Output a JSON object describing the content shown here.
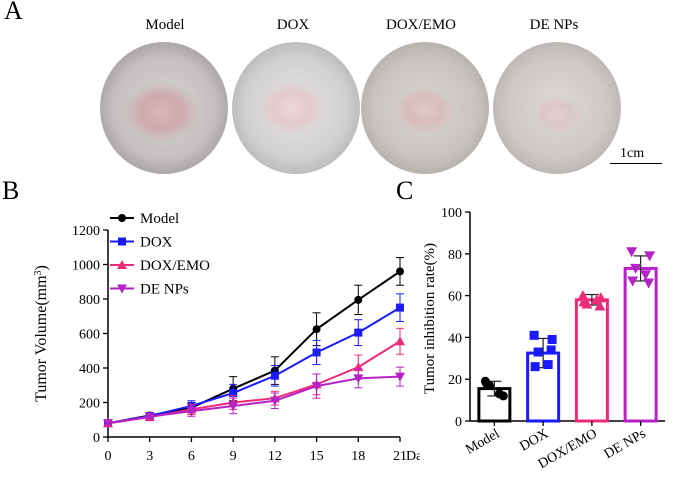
{
  "panels": {
    "a": "A",
    "b": "B",
    "c": "C"
  },
  "photos": {
    "labels": [
      "Model",
      "DOX",
      "DOX/EMO",
      "DE NPs"
    ],
    "scale_label": "1cm"
  },
  "colors": {
    "Model": "#000000",
    "DOX": "#1a1aff",
    "DOX/EMO": "#ee2a7b",
    "DE NPs": "#b522c6"
  },
  "chart_data": [
    {
      "type": "line",
      "title": "",
      "xlabel": "Days",
      "ylabel": "Tumor Volume(mm",
      "ylabel_sup": "3",
      "ylabel_close": ")",
      "x": [
        0,
        3,
        6,
        9,
        12,
        15,
        18,
        21
      ],
      "xlim": [
        0,
        21
      ],
      "ylim": [
        0,
        1200
      ],
      "yticks": [
        0,
        200,
        400,
        600,
        800,
        1000,
        1200
      ],
      "legend": "top-left",
      "series": [
        {
          "name": "Model",
          "marker": "circle",
          "values": [
            80,
            125,
            170,
            280,
            385,
            625,
            795,
            960
          ],
          "errors": [
            10,
            15,
            30,
            70,
            80,
            95,
            85,
            80
          ]
        },
        {
          "name": "DOX",
          "marker": "square",
          "values": [
            80,
            122,
            180,
            255,
            355,
            490,
            605,
            750
          ],
          "errors": [
            10,
            15,
            30,
            50,
            60,
            70,
            75,
            80
          ]
        },
        {
          "name": "DOX/EMO",
          "marker": "triangle-up",
          "values": [
            80,
            115,
            160,
            200,
            225,
            305,
            405,
            555
          ],
          "errors": [
            10,
            15,
            30,
            40,
            40,
            60,
            70,
            75
          ]
        },
        {
          "name": "DE NPs",
          "marker": "triangle-down",
          "values": [
            80,
            118,
            150,
            180,
            210,
            295,
            340,
            350
          ],
          "errors": [
            10,
            15,
            30,
            45,
            45,
            70,
            55,
            55
          ]
        }
      ]
    },
    {
      "type": "bar",
      "title": "",
      "xlabel": "",
      "ylabel": "Tumor inhibition rate(%)",
      "categories": [
        "Model",
        "DOX",
        "DOX/EMO",
        "DE NPs"
      ],
      "values": [
        15.5,
        32.5,
        58,
        73
      ],
      "errors": [
        3.5,
        7,
        2.5,
        6
      ],
      "ylim": [
        0,
        100
      ],
      "yticks": [
        0,
        20,
        40,
        60,
        80,
        100
      ],
      "points": [
        [
          19,
          12,
          17,
          13,
          18
        ],
        [
          41,
          39,
          33,
          27,
          26,
          34
        ],
        [
          60,
          59,
          56,
          58,
          57,
          55
        ],
        [
          81,
          79,
          73,
          70,
          67,
          66
        ]
      ]
    }
  ]
}
